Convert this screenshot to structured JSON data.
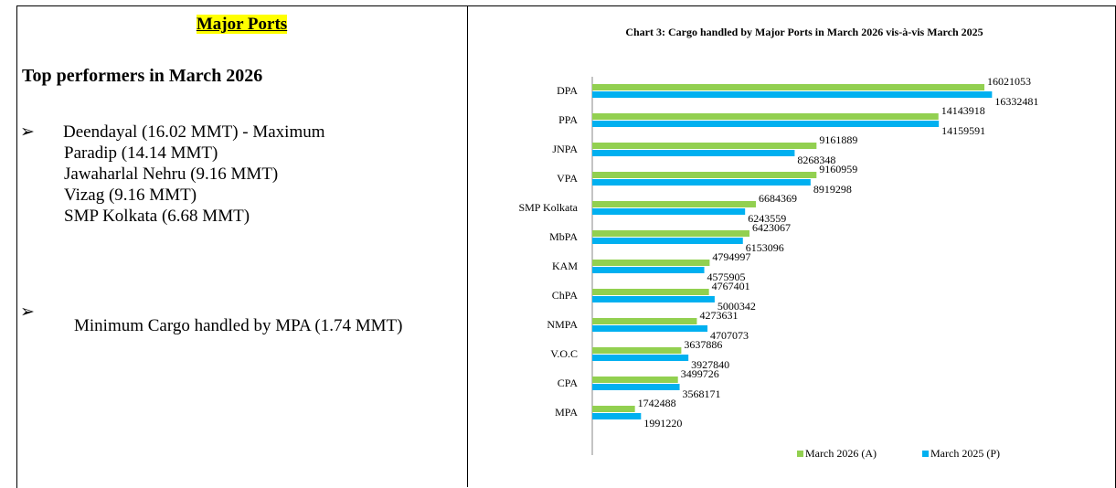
{
  "left": {
    "heading": "Major Ports",
    "subheading": "Top performers in March 2026",
    "top_list": [
      "Deendayal (16.02 MMT) - Maximum",
      "Paradip (14.14 MMT)",
      "Jawaharlal Nehru (9.16 MMT)",
      "Vizag (9.16 MMT)",
      "SMP Kolkata (6.68 MMT)"
    ],
    "minimum": "Minimum Cargo handled by MPA (1.74 MMT)"
  },
  "chart_data": {
    "type": "hbar",
    "title": "Chart 3: Cargo handled by Major Ports in  March 2026 vis-à-vis  March 2025",
    "categories": [
      "DPA",
      "PPA",
      "JNPA",
      "VPA",
      "SMP Kolkata",
      "MbPA",
      "KAM",
      "ChPA",
      "NMPA",
      "V.O.C",
      "CPA",
      "MPA"
    ],
    "series": [
      {
        "name": "March 2026 (A)",
        "color": "#92d050",
        "values": [
          16021053,
          14143918,
          9161889,
          9160959,
          6684369,
          6423067,
          4794997,
          4767401,
          4273631,
          3637886,
          3499726,
          1742488
        ]
      },
      {
        "name": "March 2025 (P)",
        "color": "#00b0f0",
        "values": [
          16332481,
          14159591,
          8268348,
          8919298,
          6243559,
          6153096,
          4575905,
          5000342,
          4707073,
          3927840,
          3568171,
          1991220
        ]
      }
    ],
    "xlim": [
      0,
      18000000
    ],
    "legend": "bottom"
  }
}
